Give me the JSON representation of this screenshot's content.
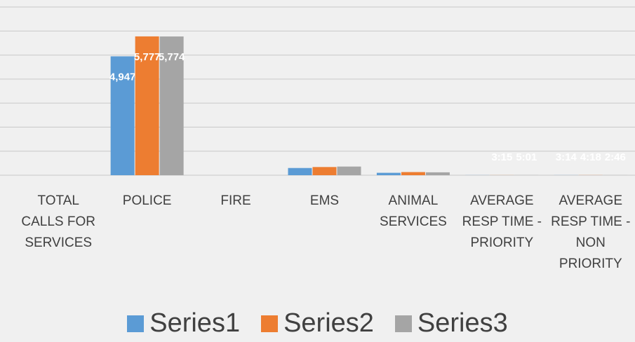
{
  "chart_data": {
    "type": "bar",
    "categories": [
      "TOTAL CALLS FOR SERVICES",
      "POLICE",
      "FIRE",
      "EMS",
      "ANIMAL SERVICES",
      "AVERAGE RESP TIME - PRIORITY",
      "AVERAGE RESP TIME - NON PRIORITY"
    ],
    "series": [
      {
        "name": "Series1",
        "color": "#5b9bd5",
        "values": [
          null,
          4947,
          null,
          300,
          100,
          3.25,
          3.23
        ],
        "value_labels": [
          null,
          "4,947",
          null,
          null,
          null,
          null,
          "3:14"
        ]
      },
      {
        "name": "Series2",
        "color": "#ed7d31",
        "values": [
          null,
          5777,
          null,
          340,
          130,
          3.25,
          4.3
        ],
        "value_labels": [
          null,
          "5,777",
          null,
          null,
          null,
          "3:15",
          "4:18"
        ]
      },
      {
        "name": "Series3",
        "color": "#a5a5a5",
        "values": [
          null,
          5774,
          null,
          360,
          120,
          5.02,
          2.77
        ],
        "value_labels": [
          null,
          "5,774",
          null,
          null,
          null,
          "5:01",
          "2:46"
        ]
      }
    ],
    "ylim": [
      0,
      7000
    ],
    "yticks": [
      0,
      1000,
      2000,
      3000,
      4000,
      5000,
      6000,
      7000
    ],
    "grid": true,
    "legend": "bottom"
  }
}
